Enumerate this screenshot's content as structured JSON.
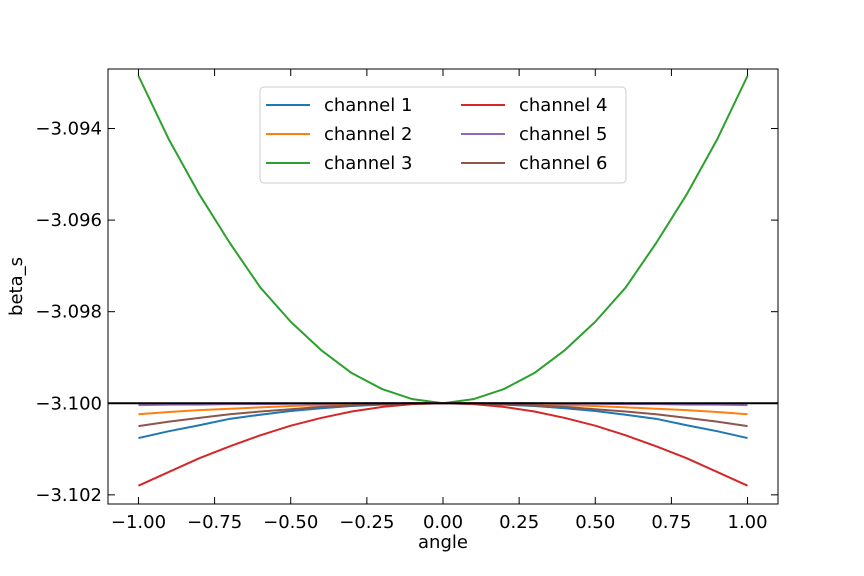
{
  "chart_data": {
    "type": "line",
    "title": "",
    "xlabel": "angle",
    "ylabel": "beta_s",
    "xlim": [
      -1.1,
      1.1
    ],
    "ylim": [
      -3.1022,
      -3.0927
    ],
    "x_ticks": [
      -1.0,
      -0.75,
      -0.5,
      -0.25,
      0.0,
      0.25,
      0.5,
      0.75,
      1.0
    ],
    "x_tick_labels": [
      "−1.00",
      "−0.75",
      "−0.50",
      "−0.25",
      "0.00",
      "0.25",
      "0.50",
      "0.75",
      "1.00"
    ],
    "y_ticks": [
      -3.094,
      -3.096,
      -3.098,
      -3.1,
      -3.102
    ],
    "y_tick_labels": [
      "−3.094",
      "−3.096",
      "−3.098",
      "−3.100",
      "−3.102"
    ],
    "grid": false,
    "legend_position": "upper-center",
    "reference_line": {
      "y": -3.1,
      "color": "#000000"
    },
    "x": [
      -1.0,
      -0.9,
      -0.8,
      -0.7,
      -0.6,
      -0.5,
      -0.4,
      -0.3,
      -0.2,
      -0.1,
      0.0,
      0.1,
      0.2,
      0.3,
      0.4,
      0.5,
      0.6,
      0.7,
      0.8,
      0.9,
      1.0
    ],
    "series": [
      {
        "name": "channel 1",
        "color": "#1f77b4",
        "values": [
          -3.10076,
          -3.10061,
          -3.10048,
          -3.10034,
          -3.10025,
          -3.10017,
          -3.10011,
          -3.10006,
          -3.10003,
          -3.10001,
          -3.1,
          -3.10001,
          -3.10003,
          -3.10006,
          -3.10011,
          -3.10017,
          -3.10025,
          -3.10034,
          -3.10048,
          -3.10061,
          -3.10076
        ]
      },
      {
        "name": "channel 2",
        "color": "#ff7f0e",
        "values": [
          -3.10024,
          -3.10019,
          -3.10015,
          -3.10012,
          -3.10009,
          -3.10006,
          -3.10004,
          -3.10002,
          -3.10001,
          -3.1,
          -3.1,
          -3.1,
          -3.10001,
          -3.10002,
          -3.10004,
          -3.10006,
          -3.10009,
          -3.10012,
          -3.10015,
          -3.10019,
          -3.10024
        ]
      },
      {
        "name": "channel 3",
        "color": "#2ca02c",
        "values": [
          -3.09285,
          -3.09424,
          -3.09544,
          -3.0965,
          -3.09747,
          -3.09822,
          -3.09884,
          -3.09934,
          -3.09969,
          -3.09991,
          -3.1,
          -3.09991,
          -3.09969,
          -3.09934,
          -3.09884,
          -3.09822,
          -3.09747,
          -3.0965,
          -3.09544,
          -3.09424,
          -3.09285
        ]
      },
      {
        "name": "channel 4",
        "color": "#d62728",
        "values": [
          -3.1018,
          -3.1015,
          -3.1012,
          -3.10094,
          -3.1007,
          -3.10049,
          -3.10032,
          -3.10018,
          -3.10008,
          -3.10002,
          -3.1,
          -3.10002,
          -3.10008,
          -3.10018,
          -3.10032,
          -3.10049,
          -3.1007,
          -3.10094,
          -3.1012,
          -3.1015,
          -3.1018
        ]
      },
      {
        "name": "channel 5",
        "color": "#9467bd",
        "values": [
          -3.10004,
          -3.10003,
          -3.10003,
          -3.10002,
          -3.10002,
          -3.10001,
          -3.10001,
          -3.1,
          -3.1,
          -3.1,
          -3.1,
          -3.1,
          -3.1,
          -3.1,
          -3.10001,
          -3.10001,
          -3.10002,
          -3.10002,
          -3.10003,
          -3.10003,
          -3.10004
        ]
      },
      {
        "name": "channel 6",
        "color": "#8c564b",
        "values": [
          -3.1005,
          -3.1004,
          -3.10032,
          -3.10024,
          -3.10018,
          -3.10013,
          -3.10008,
          -3.10005,
          -3.10002,
          -3.1,
          -3.1,
          -3.1,
          -3.10002,
          -3.10005,
          -3.10008,
          -3.10013,
          -3.10018,
          -3.10024,
          -3.10032,
          -3.1004,
          -3.1005
        ]
      }
    ]
  }
}
